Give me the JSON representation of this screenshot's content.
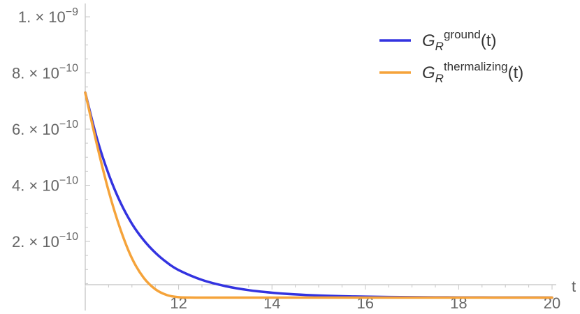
{
  "chart_data": {
    "type": "line",
    "xlabel": "t",
    "ylabel": "",
    "xlim": [
      10,
      20
    ],
    "ylim": [
      -4.6e-11,
      1.03e-09
    ],
    "x_ticks": [
      {
        "value": 12,
        "label": "12"
      },
      {
        "value": 14,
        "label": "14"
      },
      {
        "value": 16,
        "label": "16"
      },
      {
        "value": 18,
        "label": "18"
      },
      {
        "value": 20,
        "label": "20"
      }
    ],
    "y_ticks": [
      {
        "value": 2e-10,
        "mantissa": "2.",
        "base": "10",
        "exponent": "−10"
      },
      {
        "value": 4e-10,
        "mantissa": "4.",
        "base": "10",
        "exponent": "−10"
      },
      {
        "value": 6e-10,
        "mantissa": "6.",
        "base": "10",
        "exponent": "−10"
      },
      {
        "value": 8e-10,
        "mantissa": "8.",
        "base": "10",
        "exponent": "−10"
      },
      {
        "value": 1e-09,
        "mantissa": "1.",
        "base": "10",
        "exponent": "−9"
      }
    ],
    "legend_position": "top-right",
    "series": [
      {
        "name": "G_R^ground(t)",
        "label_main": "G",
        "label_sub": "R",
        "label_sup": "ground",
        "label_arg": "(t)",
        "color": "#3333e0",
        "x": [
          10.0,
          10.25,
          10.5,
          10.75,
          11.0,
          11.25,
          11.5,
          11.75,
          12.0,
          12.5,
          13.0,
          13.5,
          14.0,
          14.5,
          15.0,
          15.5,
          16.0,
          16.5,
          17.0,
          17.5,
          18.0,
          18.5,
          19.0,
          19.5,
          20.0
        ],
        "y": [
          7.3e-10,
          5.67e-10,
          4.4e-10,
          3.4e-10,
          2.63e-10,
          2.05e-10,
          1.6e-10,
          1.25e-10,
          9.8e-11,
          6.3e-11,
          4.1e-11,
          2.65e-11,
          1.75e-11,
          1.15e-11,
          7.5e-12,
          5e-12,
          3.3e-12,
          2.2e-12,
          1.5e-12,
          1e-12,
          7e-13,
          5e-13,
          3e-13,
          2e-13,
          1e-13
        ]
      },
      {
        "name": "G_R^thermalizing(t)",
        "label_main": "G",
        "label_sub": "R",
        "label_sup": "thermalizing",
        "label_arg": "(t)",
        "color": "#f5a33a",
        "x": [
          10.0,
          10.25,
          10.5,
          10.75,
          11.0,
          11.25,
          11.5,
          11.75,
          12.0,
          12.25,
          12.5,
          13.0,
          14.0,
          15.0,
          16.0,
          17.0,
          18.0,
          19.0,
          20.0
        ],
        "y": [
          7.3e-10,
          5.45e-10,
          3.8e-10,
          2.45e-10,
          1.4e-10,
          7.1e-11,
          3e-11,
          9e-12,
          1.5e-12,
          2e-13,
          0,
          0,
          0,
          0,
          0,
          0,
          0,
          0,
          0
        ]
      }
    ]
  }
}
